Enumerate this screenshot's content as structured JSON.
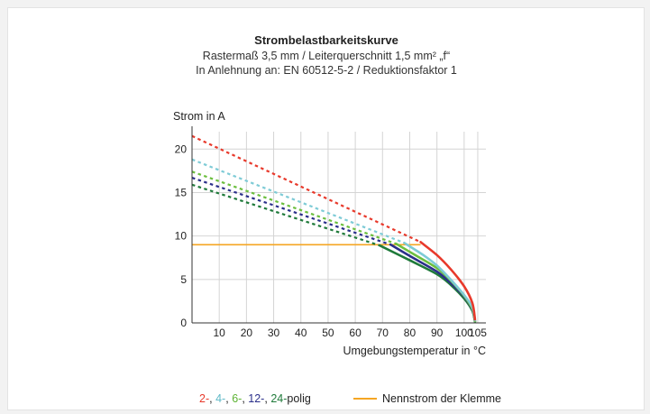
{
  "chart_data": {
    "type": "line",
    "title": "Strombelastbarkeitskurve",
    "subtitle_lines": [
      "Rastermaß 3,5 mm / Leiterquerschnitt 1,5 mm² „f“",
      "In Anlehnung an: EN 60512-5-2 / Reduktionsfaktor 1"
    ],
    "ylabel": "Strom in A",
    "xlabel": "Umgebungstemperatur in °C",
    "xlim": [
      0,
      108
    ],
    "ylim": [
      0,
      22
    ],
    "x_ticks": [
      10,
      20,
      30,
      40,
      50,
      60,
      70,
      80,
      90,
      100,
      105
    ],
    "y_ticks": [
      0,
      5,
      10,
      15,
      20
    ],
    "grid": true,
    "series": [
      {
        "name": "2-",
        "color": "#e8392b",
        "dashed": [
          [
            0,
            21.5
          ],
          [
            84,
            9.3
          ]
        ],
        "solid": [
          [
            84,
            9.3
          ],
          [
            90,
            7.8
          ],
          [
            95,
            6.2
          ],
          [
            100,
            4.2
          ],
          [
            103,
            2.3
          ],
          [
            104,
            0.4
          ]
        ]
      },
      {
        "name": "4-",
        "color": "#7ecbd6",
        "dashed": [
          [
            0,
            18.8
          ],
          [
            78,
            9.2
          ]
        ],
        "solid": [
          [
            78,
            9.2
          ],
          [
            85,
            7.8
          ],
          [
            90,
            6.6
          ],
          [
            95,
            5.0
          ],
          [
            100,
            3.2
          ],
          [
            103,
            1.8
          ],
          [
            104,
            0.3
          ]
        ]
      },
      {
        "name": "6-",
        "color": "#6cbf3f",
        "dashed": [
          [
            0,
            17.4
          ],
          [
            75,
            9.1
          ]
        ],
        "solid": [
          [
            75,
            9.1
          ],
          [
            82,
            7.8
          ],
          [
            90,
            6.3
          ],
          [
            95,
            4.9
          ],
          [
            100,
            3.1
          ],
          [
            103,
            1.6
          ],
          [
            104,
            0.2
          ]
        ]
      },
      {
        "name": "12-",
        "color": "#2a2f8a",
        "dashed": [
          [
            0,
            16.7
          ],
          [
            73,
            9.0
          ]
        ],
        "solid": [
          [
            73,
            9.0
          ],
          [
            80,
            7.7
          ],
          [
            90,
            5.9
          ],
          [
            95,
            4.6
          ],
          [
            100,
            3.0
          ],
          [
            103,
            1.5
          ],
          [
            104,
            0.2
          ]
        ]
      },
      {
        "name": "24-",
        "color": "#1f7a3a",
        "dashed": [
          [
            0,
            15.9
          ],
          [
            69,
            8.9
          ]
        ],
        "solid": [
          [
            69,
            8.9
          ],
          [
            80,
            7.2
          ],
          [
            90,
            5.6
          ],
          [
            95,
            4.4
          ],
          [
            100,
            2.8
          ],
          [
            103,
            1.4
          ],
          [
            104,
            0.1
          ]
        ]
      }
    ],
    "nominal_current": {
      "name": "Nennstrom der Klemme",
      "color": "#f5a623",
      "value": 9,
      "x_end": 84
    },
    "legend": {
      "series_labels": [
        "2-",
        "4-",
        "6-",
        "12-",
        "24-"
      ],
      "separators": [
        ",",
        ",",
        ",",
        ","
      ],
      "suffix": "polig",
      "nominal_label": "Nennstrom der Klemme"
    }
  }
}
